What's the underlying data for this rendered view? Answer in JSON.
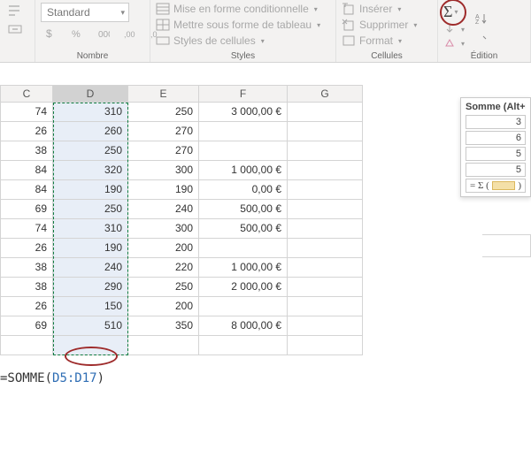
{
  "ribbon": {
    "nombre": {
      "format_combo": "Standard",
      "label": "Nombre"
    },
    "styles": {
      "cond_format": "Mise en forme conditionnelle",
      "table_format": "Mettre sous forme de tableau",
      "cell_styles": "Styles de cellules",
      "label": "Styles"
    },
    "cellules": {
      "insert": "Insérer",
      "delete": "Supprimer",
      "format": "Format",
      "label": "Cellules"
    },
    "edition": {
      "label": "Édition"
    }
  },
  "columns": [
    "C",
    "D",
    "E",
    "F",
    "G"
  ],
  "rows": [
    {
      "c": "74",
      "d": "310",
      "e": "250",
      "f": "3 000,00 €"
    },
    {
      "c": "26",
      "d": "260",
      "e": "270",
      "f": ""
    },
    {
      "c": "38",
      "d": "250",
      "e": "270",
      "f": ""
    },
    {
      "c": "84",
      "d": "320",
      "e": "300",
      "f": "1 000,00 €"
    },
    {
      "c": "84",
      "d": "190",
      "e": "190",
      "f": "0,00 €"
    },
    {
      "c": "69",
      "d": "250",
      "e": "240",
      "f": "500,00 €"
    },
    {
      "c": "74",
      "d": "310",
      "e": "300",
      "f": "500,00 €"
    },
    {
      "c": "26",
      "d": "190",
      "e": "200",
      "f": ""
    },
    {
      "c": "38",
      "d": "240",
      "e": "220",
      "f": "1 000,00 €"
    },
    {
      "c": "38",
      "d": "290",
      "e": "250",
      "f": "2 000,00 €"
    },
    {
      "c": "26",
      "d": "150",
      "e": "200",
      "f": ""
    },
    {
      "c": "69",
      "d": "510",
      "e": "350",
      "f": "8 000,00 €"
    }
  ],
  "formula": {
    "prefix": "=SOMME(",
    "ref": "D5:D17",
    "suffix": ")"
  },
  "tooltip": {
    "title": "Somme (Alt+=)",
    "values": [
      "3",
      "6",
      "5",
      "5"
    ],
    "sum_label": "= Σ ("
  },
  "colors": {
    "highlight_red": "#9e2b2b",
    "sel_blue": "#e8eef7",
    "marching_green": "#107c41"
  }
}
